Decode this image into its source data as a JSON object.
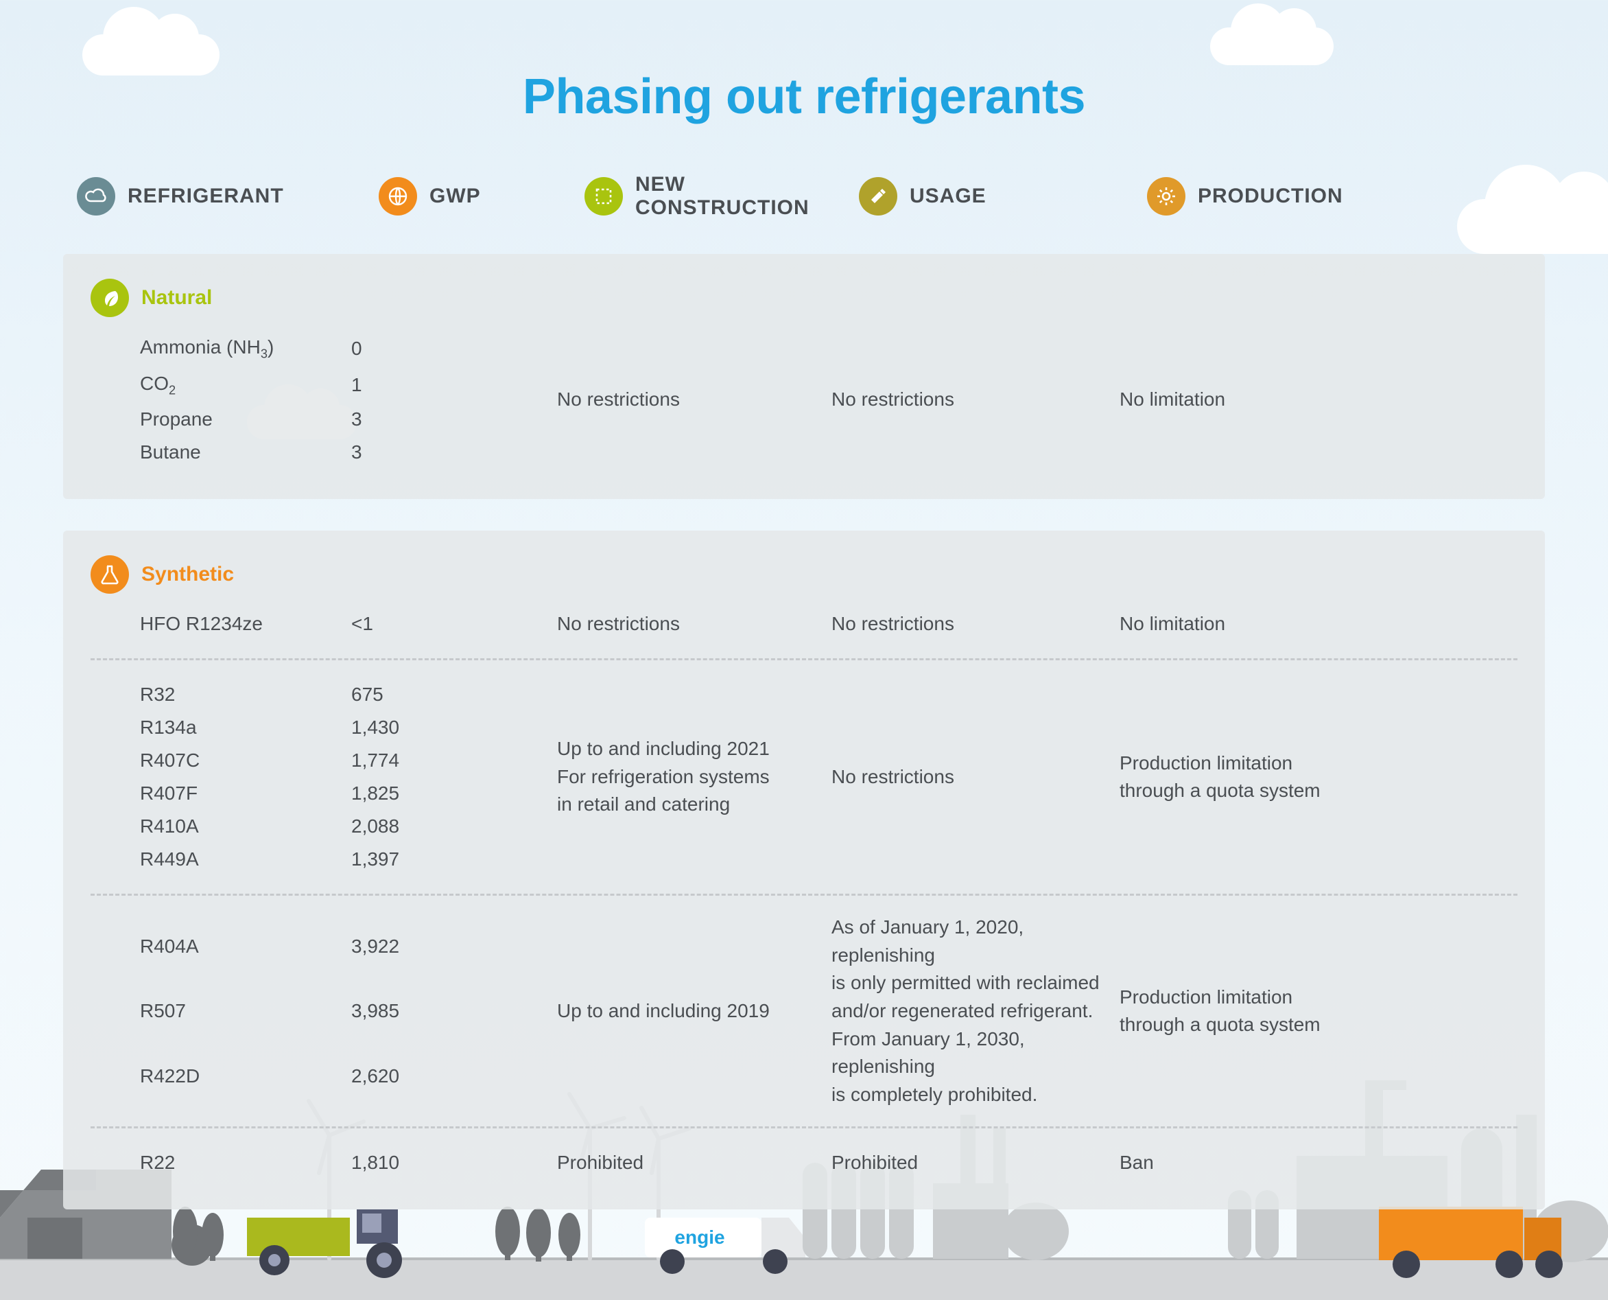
{
  "colors": {
    "title": "#1fa3e0",
    "headerText": "#3c4044",
    "bodyText": "#4a4e52",
    "panelBg": "rgba(228,231,233,0.85)",
    "dividerDash": "#c6c9cc",
    "iconRefrigerant": "#6a8c94",
    "iconGwp": "#f28c1c",
    "iconNewConstruction": "#a9c40f",
    "iconUsage": "#b0a22b",
    "iconProduction": "#e09a2a",
    "natural": "#a9c40f",
    "synthetic": "#f28c1c"
  },
  "title": "Phasing out refrigerants",
  "headers": {
    "refrigerant": "Refrigerant",
    "gwp": "GWP",
    "newConstruction": "New construction",
    "usage": "Usage",
    "production": "Production"
  },
  "natural": {
    "title": "Natural",
    "rows": [
      {
        "name": "Ammonia  (NH₃)",
        "gwp": "0"
      },
      {
        "name": "CO₂",
        "gwp": "1"
      },
      {
        "name": "Propane",
        "gwp": "3"
      },
      {
        "name": "Butane",
        "gwp": "3"
      }
    ],
    "newConstruction": "No restrictions",
    "usage": "No restrictions",
    "production": "No limitation"
  },
  "synthetic": {
    "title": "Synthetic",
    "groups": [
      {
        "rows": [
          {
            "name": "HFO R1234ze",
            "gwp": "<1"
          }
        ],
        "newConstruction": "No restrictions",
        "usage": "No restrictions",
        "production": "No limitation"
      },
      {
        "rows": [
          {
            "name": "R32",
            "gwp": "675"
          },
          {
            "name": "R134a",
            "gwp": "1,430"
          },
          {
            "name": "R407C",
            "gwp": "1,774"
          },
          {
            "name": "R407F",
            "gwp": "1,825"
          },
          {
            "name": "R410A",
            "gwp": "2,088"
          },
          {
            "name": "R449A",
            "gwp": "1,397"
          }
        ],
        "newConstruction": "Up to and including 2021\nFor refrigeration systems\nin retail and catering",
        "usage": "No restrictions",
        "production": "Production limitation\nthrough a quota system"
      },
      {
        "rows": [
          {
            "name": "R404A",
            "gwp": "3,922"
          },
          {
            "name": "R507",
            "gwp": "3,985"
          },
          {
            "name": "R422D",
            "gwp": "2,620"
          }
        ],
        "newConstruction": "Up to and including 2019",
        "usage": "As of January 1, 2020, replenishing\nis only permitted with reclaimed\nand/or regenerated refrigerant.\nFrom January 1, 2030, replenishing\nis completely prohibited.",
        "production": "Production limitation\nthrough a quota system"
      },
      {
        "rows": [
          {
            "name": "R22",
            "gwp": "1,810"
          }
        ],
        "newConstruction": "Prohibited",
        "usage": "Prohibited",
        "production": "Ban"
      }
    ]
  },
  "footer": {
    "brand": "engie"
  }
}
